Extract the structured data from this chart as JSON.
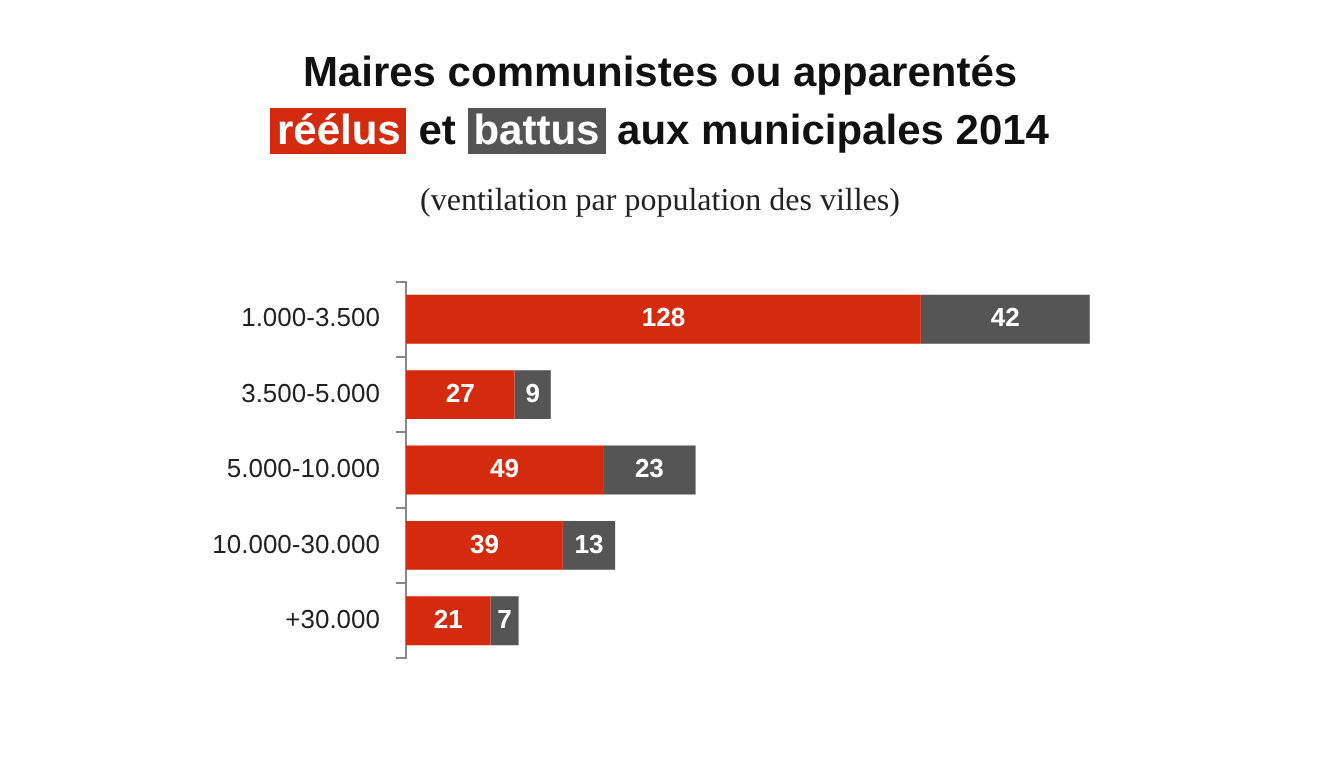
{
  "chart_data": {
    "type": "bar",
    "orientation": "horizontal",
    "stacked": true,
    "title": "Maires communistes ou apparentés",
    "subtitle": "(ventilation par population des villes)",
    "annotations": [
      "et",
      "aux municipales 2014"
    ],
    "legend": "top",
    "data_labels": true,
    "categories": [
      "1.000-3.500",
      "3.500-5.000",
      "5.000-10.000",
      "10.000-30.000",
      "+30.000"
    ],
    "series": [
      {
        "name": "réélus",
        "color": "#d42a0e",
        "values": [
          128,
          27,
          49,
          39,
          21
        ]
      },
      {
        "name": "battus",
        "color": "#555555",
        "values": [
          42,
          9,
          23,
          13,
          7
        ]
      }
    ]
  }
}
